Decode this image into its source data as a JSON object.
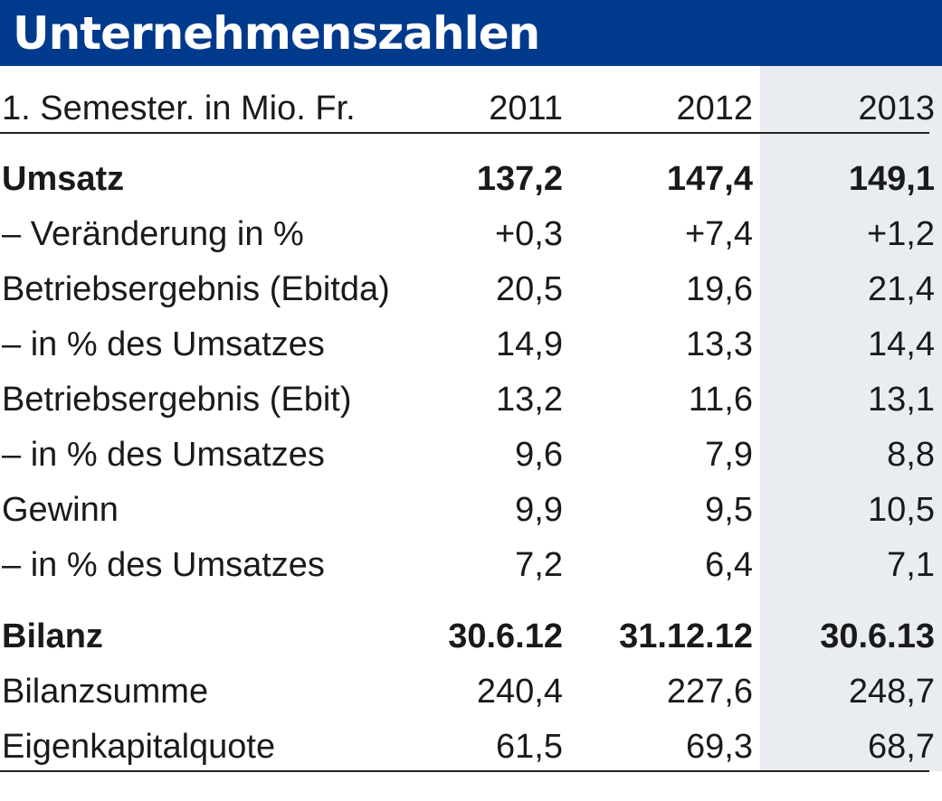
{
  "chart_data": {
    "type": "table",
    "title": "Unternehmenszahlen",
    "header": {
      "label": "1. Semester. in Mio. Fr.",
      "columns": [
        "2011",
        "2012",
        "2013"
      ]
    },
    "rows": [
      {
        "label": "Umsatz",
        "values": [
          "137,2",
          "147,4",
          "149,1"
        ],
        "bold": true
      },
      {
        "label": "– Veränderung in %",
        "values": [
          "+0,3",
          "+7,4",
          "+1,2"
        ],
        "bold": false
      },
      {
        "label": "Betriebsergebnis (Ebitda)",
        "values": [
          "20,5",
          "19,6",
          "21,4"
        ],
        "bold": false
      },
      {
        "label": "– in % des Umsatzes",
        "values": [
          "14,9",
          "13,3",
          "14,4"
        ],
        "bold": false
      },
      {
        "label": "Betriebsergebnis (Ebit)",
        "values": [
          "13,2",
          "11,6",
          "13,1"
        ],
        "bold": false
      },
      {
        "label": "– in % des Umsatzes",
        "values": [
          "9,6",
          "7,9",
          "8,8"
        ],
        "bold": false
      },
      {
        "label": "Gewinn",
        "values": [
          "9,9",
          "9,5",
          "10,5"
        ],
        "bold": false
      },
      {
        "label": "– in % des Umsatzes",
        "values": [
          "7,2",
          "6,4",
          "7,1"
        ],
        "bold": false
      },
      {
        "label": "Bilanz",
        "values": [
          "30.6.12",
          "31.12.12",
          "30.6.13"
        ],
        "bold": true
      },
      {
        "label": "Bilanzsumme",
        "values": [
          "240,4",
          "227,6",
          "248,7"
        ],
        "bold": false
      },
      {
        "label": "Eigenkapitalquote",
        "values": [
          "61,5",
          "69,3",
          "68,7"
        ],
        "bold": false
      }
    ]
  },
  "colors": {
    "title_background": "#003a8c",
    "title_text": "#ffffff",
    "highlight_column": "#e9edf1",
    "text": "#1a1a1a",
    "rule": "#222222"
  }
}
